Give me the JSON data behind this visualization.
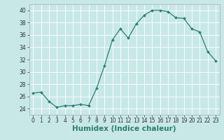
{
  "x": [
    0,
    1,
    2,
    3,
    4,
    5,
    6,
    7,
    8,
    9,
    10,
    11,
    12,
    13,
    14,
    15,
    16,
    17,
    18,
    19,
    20,
    21,
    22,
    23
  ],
  "y": [
    26.5,
    26.7,
    25.2,
    24.2,
    24.5,
    24.5,
    24.7,
    24.5,
    27.3,
    31.0,
    35.2,
    37.0,
    35.5,
    37.8,
    39.2,
    40.0,
    40.0,
    39.8,
    38.8,
    38.7,
    37.0,
    36.5,
    33.3,
    31.8
  ],
  "line_color": "#2e7d6e",
  "marker": "D",
  "marker_size": 2.0,
  "bg_color": "#c8e8e8",
  "grid_color": "#ffffff",
  "xlabel": "Humidex (Indice chaleur)",
  "ylim": [
    23,
    41
  ],
  "xlim": [
    -0.5,
    23.5
  ],
  "yticks": [
    24,
    26,
    28,
    30,
    32,
    34,
    36,
    38,
    40
  ],
  "xticks": [
    0,
    1,
    2,
    3,
    4,
    5,
    6,
    7,
    8,
    9,
    10,
    11,
    12,
    13,
    14,
    15,
    16,
    17,
    18,
    19,
    20,
    21,
    22,
    23
  ],
  "tick_label_fontsize": 5.5,
  "xlabel_fontsize": 7.5
}
